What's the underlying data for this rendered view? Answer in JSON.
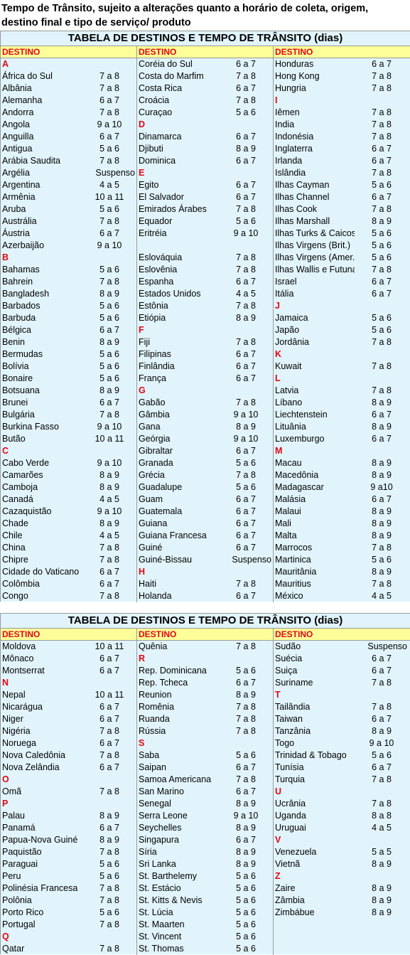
{
  "intro": "Tempo de Trânsito, sujeito a alterações quanto a horário de coleta, origem, destino final e tipo de serviço/ produto",
  "tables": [
    {
      "title": "TABELA DE DESTINOS E TEMPO DE TRÂNSITO (dias)",
      "headers": [
        "DESTINO",
        "DESTINO",
        "DESTINO"
      ],
      "columns": [
        [
          {
            "l": "A"
          },
          {
            "n": "África do Sul",
            "v": "7 a 8"
          },
          {
            "n": "Albânia",
            "v": "7 a 8"
          },
          {
            "n": "Alemanha",
            "v": "6 a 7"
          },
          {
            "n": "Andorra",
            "v": "7 a 8"
          },
          {
            "n": "Angola",
            "v": "9 a 10"
          },
          {
            "n": "Anguilla",
            "v": "6 a 7"
          },
          {
            "n": "Antigua",
            "v": "5 a 6"
          },
          {
            "n": "Arábia Saudita",
            "v": "7 a 8"
          },
          {
            "n": "Argélia",
            "v": "Suspenso"
          },
          {
            "n": "Argentina",
            "v": "4 a 5"
          },
          {
            "n": "Armênia",
            "v": "10 a 11"
          },
          {
            "n": "Aruba",
            "v": "5 a 6"
          },
          {
            "n": "Austrália",
            "v": "7 a 8"
          },
          {
            "n": "Áustria",
            "v": "6 a 7"
          },
          {
            "n": "Azerbaijão",
            "v": "9 a 10"
          },
          {
            "l": "B"
          },
          {
            "n": "Bahamas",
            "v": "5 a 6"
          },
          {
            "n": "Bahrein",
            "v": "7 a 8"
          },
          {
            "n": "Bangladesh",
            "v": "8 a 9"
          },
          {
            "n": "Barbados",
            "v": "5 a 6"
          },
          {
            "n": "Barbuda",
            "v": "5 a 6"
          },
          {
            "n": "Bélgica",
            "v": "6 a 7"
          },
          {
            "n": "Benin",
            "v": "8 a 9"
          },
          {
            "n": "Bermudas",
            "v": "5 a 6"
          },
          {
            "n": "Bolívia",
            "v": "5 a 6"
          },
          {
            "n": "Bonaire",
            "v": "5 a 6"
          },
          {
            "n": "Botsuana",
            "v": "8 a 9"
          },
          {
            "n": "Brunei",
            "v": "6 a 7"
          },
          {
            "n": "Bulgária",
            "v": "7 a 8"
          },
          {
            "n": "Burkina Fasso",
            "v": "9 a 10"
          },
          {
            "n": "Butão",
            "v": "10 a 11"
          },
          {
            "l": "C"
          },
          {
            "n": "Cabo Verde",
            "v": "9 a 10"
          },
          {
            "n": "Camarões",
            "v": "8 a 9"
          },
          {
            "n": "Camboja",
            "v": "8 a 9"
          },
          {
            "n": "Canadá",
            "v": "4 a 5"
          },
          {
            "n": "Cazaquistão",
            "v": "9 a 10"
          },
          {
            "n": "Chade",
            "v": "8 a 9"
          },
          {
            "n": "Chile",
            "v": "4 a 5"
          },
          {
            "n": "China",
            "v": "7 a 8"
          },
          {
            "n": "Chipre",
            "v": "7 a 8"
          },
          {
            "n": "Cidade do Vaticano",
            "v": "6 a 7"
          },
          {
            "n": "Colômbia",
            "v": "6 a 7"
          },
          {
            "n": "Congo",
            "v": "7 a 8"
          }
        ],
        [
          {
            "n": "Coréia do Sul",
            "v": "6 a 7"
          },
          {
            "n": "Costa do Marfim",
            "v": "7 a 8"
          },
          {
            "n": "Costa Rica",
            "v": "6 a 7"
          },
          {
            "n": "Croácia",
            "v": "7 a 8"
          },
          {
            "n": "Curaçao",
            "v": "5 a 6"
          },
          {
            "l": "D"
          },
          {
            "n": "Dinamarca",
            "v": "6 a 7"
          },
          {
            "n": "Djibuti",
            "v": "8 a 9"
          },
          {
            "n": "Dominica",
            "v": "6 a 7"
          },
          {
            "l": "E"
          },
          {
            "n": "Egito",
            "v": "6 a 7"
          },
          {
            "n": "El Salvador",
            "v": "6 a 7"
          },
          {
            "n": "Emirados Árabes",
            "v": "7 a 8"
          },
          {
            "n": "Equador",
            "v": "5 a 6"
          },
          {
            "n": "Eritréia",
            "v": "9 a 10"
          },
          {
            "n": "",
            "v": ""
          },
          {
            "n": "Eslováquia",
            "v": "7 a 8"
          },
          {
            "n": "Eslovênia",
            "v": "7 a 8"
          },
          {
            "n": "Espanha",
            "v": "6 a 7"
          },
          {
            "n": "Estados Unidos",
            "v": "4 a 5"
          },
          {
            "n": "Estônia",
            "v": "7 a 8"
          },
          {
            "n": "Etiópia",
            "v": "8 a 9"
          },
          {
            "l": "F"
          },
          {
            "n": "Fiji",
            "v": "7 a 8"
          },
          {
            "n": "Filipinas",
            "v": "6 a 7"
          },
          {
            "n": "Finlândia",
            "v": "6 a 7"
          },
          {
            "n": "França",
            "v": "6 a 7"
          },
          {
            "l": "G"
          },
          {
            "n": "Gabão",
            "v": "7 a 8"
          },
          {
            "n": "Gâmbia",
            "v": "9 a 10"
          },
          {
            "n": "Gana",
            "v": "8 a 9"
          },
          {
            "n": "Geórgia",
            "v": "9 a 10"
          },
          {
            "n": "Gibraltar",
            "v": "6 a 7"
          },
          {
            "n": "Granada",
            "v": "5 a 6"
          },
          {
            "n": "Grécia",
            "v": "7 a 8"
          },
          {
            "n": "Guadalupe",
            "v": "5 a 6"
          },
          {
            "n": "Guam",
            "v": "6 a 7"
          },
          {
            "n": "Guatemala",
            "v": "6 a 7"
          },
          {
            "n": "Guiana",
            "v": "6 a 7"
          },
          {
            "n": "Guiana Francesa",
            "v": "6 a 7"
          },
          {
            "n": "Guiné",
            "v": "6 a 7"
          },
          {
            "n": "Guiné-Bissau",
            "v": "Suspenso"
          },
          {
            "l": "H"
          },
          {
            "n": "Haiti",
            "v": "7 a 8"
          },
          {
            "n": "Holanda",
            "v": "6 a 7"
          }
        ],
        [
          {
            "n": "Honduras",
            "v": "6 a 7"
          },
          {
            "n": "Hong Kong",
            "v": "7 a 8"
          },
          {
            "n": "Hungria",
            "v": "7 a 8"
          },
          {
            "l": "I"
          },
          {
            "n": "Iêmen",
            "v": "7 a 8"
          },
          {
            "n": "India",
            "v": "7 a 8"
          },
          {
            "n": "Indonésia",
            "v": "7 a 8"
          },
          {
            "n": "Inglaterra",
            "v": "6 a 7"
          },
          {
            "n": "Irlanda",
            "v": "6 a 7"
          },
          {
            "n": "Islândia",
            "v": "7 a 8"
          },
          {
            "n": "Ilhas Cayman",
            "v": "5 a 6"
          },
          {
            "n": "Ilhas Channel",
            "v": "6 a 7"
          },
          {
            "n": "Ilhas Cook",
            "v": "7 a 8"
          },
          {
            "n": "Ilhas Marshall",
            "v": "8 a 9"
          },
          {
            "n": "Ilhas Turks & Caicos",
            "v": "5 a 6"
          },
          {
            "n": "Ilhas Virgens (Brit.)",
            "v": "5 a 6"
          },
          {
            "n": "Ilhas Virgens (Amer.)",
            "v": "5 a 6"
          },
          {
            "n": "Ilhas Wallis e Futuna",
            "v": "7 a 8"
          },
          {
            "n": "Israel",
            "v": "6 a 7"
          },
          {
            "n": "Itália",
            "v": "6 a 7"
          },
          {
            "l": "J"
          },
          {
            "n": "Jamaica",
            "v": "5 a 6"
          },
          {
            "n": "Japão",
            "v": "5 a 6"
          },
          {
            "n": "Jordânia",
            "v": "7 a 8"
          },
          {
            "l": "K"
          },
          {
            "n": "Kuwait",
            "v": "7 a 8"
          },
          {
            "l": "L"
          },
          {
            "n": "Latvia",
            "v": "7 a 8"
          },
          {
            "n": "Líbano",
            "v": "8 a 9"
          },
          {
            "n": "Liechtenstein",
            "v": "6 a 7"
          },
          {
            "n": "Lituânia",
            "v": "8 a 9"
          },
          {
            "n": "Luxemburgo",
            "v": "6 a 7"
          },
          {
            "l": "M"
          },
          {
            "n": "Macau",
            "v": "8 a 9"
          },
          {
            "n": "Macedônia",
            "v": "8 a 9"
          },
          {
            "n": "Madagascar",
            "v": "9 a10"
          },
          {
            "n": "Malásia",
            "v": "6 a 7"
          },
          {
            "n": "Malaui",
            "v": "8 a 9"
          },
          {
            "n": "Mali",
            "v": "8 a 9"
          },
          {
            "n": "Malta",
            "v": "8 a 9"
          },
          {
            "n": "Marrocos",
            "v": "7 a 8"
          },
          {
            "n": "Martinica",
            "v": "5 a 6"
          },
          {
            "n": "Mauritânia",
            "v": "8 a 9"
          },
          {
            "n": "Mauritius",
            "v": "7 a 8"
          },
          {
            "n": "México",
            "v": "4 a 5"
          }
        ]
      ]
    },
    {
      "title": "TABELA DE DESTINOS E TEMPO DE TRÂNSITO (dias)",
      "headers": [
        "DESTINO",
        "DESTINO",
        "DESTINO"
      ],
      "columns": [
        [
          {
            "n": "Moldova",
            "v": "10 a 11"
          },
          {
            "n": "Mônaco",
            "v": "6 a 7"
          },
          {
            "n": "Montserrat",
            "v": "6 a 7"
          },
          {
            "l": "N"
          },
          {
            "n": "Nepal",
            "v": "10 a 11"
          },
          {
            "n": "Nicarágua",
            "v": "6 a 7"
          },
          {
            "n": "Niger",
            "v": "6 a 7"
          },
          {
            "n": "Nigéria",
            "v": "7 a 8"
          },
          {
            "n": "Noruega",
            "v": "6 a 7"
          },
          {
            "n": "Nova Caledônia",
            "v": "7 a 8"
          },
          {
            "n": "Nova Zelândia",
            "v": "6 a 7"
          },
          {
            "l": "O"
          },
          {
            "n": "Omã",
            "v": "7 a 8"
          },
          {
            "l": "P"
          },
          {
            "n": "Palau",
            "v": "8 a 9"
          },
          {
            "n": "Panamá",
            "v": "6 a 7"
          },
          {
            "n": "Papua-Nova Guiné",
            "v": "8 a 9"
          },
          {
            "n": "Paquistão",
            "v": "7 a 8"
          },
          {
            "n": "Paraguai",
            "v": "5 a 6"
          },
          {
            "n": "Peru",
            "v": "5 a 6"
          },
          {
            "n": "Polinésia Francesa",
            "v": "7 a 8"
          },
          {
            "n": "Polônia",
            "v": "7 a 8"
          },
          {
            "n": "Porto Rico",
            "v": "5 a 6"
          },
          {
            "n": "Portugal",
            "v": "7 a 8"
          },
          {
            "l": "Q"
          },
          {
            "n": "Qatar",
            "v": "7 a 8"
          }
        ],
        [
          {
            "n": "Quênia",
            "v": "7 a 8"
          },
          {
            "l": "R"
          },
          {
            "n": "Rep. Dominicana",
            "v": "5 a 6"
          },
          {
            "n": "Rep. Tcheca",
            "v": "6 a 7"
          },
          {
            "n": "Reunion",
            "v": "8 a 9"
          },
          {
            "n": "Romênia",
            "v": "7 a 8"
          },
          {
            "n": "Ruanda",
            "v": "7 a 8"
          },
          {
            "n": "Rússia",
            "v": "7 a 8"
          },
          {
            "l": "S"
          },
          {
            "n": "Saba",
            "v": "5 a 6"
          },
          {
            "n": "Saipan",
            "v": "6 a 7"
          },
          {
            "n": "Samoa Americana",
            "v": "7 a 8"
          },
          {
            "n": "San Marino",
            "v": "6 a 7"
          },
          {
            "n": "Senegal",
            "v": "8 a 9"
          },
          {
            "n": "Serra Leone",
            "v": "9 a 10"
          },
          {
            "n": "Seychelles",
            "v": "8 a 9"
          },
          {
            "n": "Singapura",
            "v": "6 a 7"
          },
          {
            "n": "Síria",
            "v": "8 a 9"
          },
          {
            "n": "Sri Lanka",
            "v": "8 a 9"
          },
          {
            "n": "St. Barthelemy",
            "v": "5 a 6"
          },
          {
            "n": "St. Estácio",
            "v": "5 a 6"
          },
          {
            "n": "St. Kitts & Nevis",
            "v": "5 a 6"
          },
          {
            "n": "St. Lúcia",
            "v": "5 a 6"
          },
          {
            "n": "St. Maarten",
            "v": "5 a 6"
          },
          {
            "n": "St. Vincent",
            "v": "5 a 6"
          },
          {
            "n": "St. Thomas",
            "v": "5 a 6"
          }
        ],
        [
          {
            "n": "Sudão",
            "v": "Suspenso"
          },
          {
            "n": "Suécia",
            "v": "6 a 7"
          },
          {
            "n": "Suiça",
            "v": "6 a 7"
          },
          {
            "n": "Suriname",
            "v": "7 a 8"
          },
          {
            "l": "T"
          },
          {
            "n": "Tailândia",
            "v": "7 a 8"
          },
          {
            "n": "Taiwan",
            "v": "6 a 7"
          },
          {
            "n": "Tanzânia",
            "v": "8 a 9"
          },
          {
            "n": "Togo",
            "v": "9 a 10"
          },
          {
            "n": "Trinidad & Tobago",
            "v": "5 a 6"
          },
          {
            "n": "Tunísia",
            "v": "6 a 7"
          },
          {
            "n": "Turquia",
            "v": "7 a 8"
          },
          {
            "l": "U"
          },
          {
            "n": "Ucrânia",
            "v": "7 a 8"
          },
          {
            "n": "Uganda",
            "v": "8 a 8"
          },
          {
            "n": "Uruguai",
            "v": "4 a 5"
          },
          {
            "l": "V"
          },
          {
            "n": "Venezuela",
            "v": "5 a 5"
          },
          {
            "n": "Vietnã",
            "v": "8 a 9"
          },
          {
            "l": "Z"
          },
          {
            "n": "Zaire",
            "v": "8 a 9"
          },
          {
            "n": "Zâmbia",
            "v": "8 a 9"
          },
          {
            "n": "Zimbábue",
            "v": "8 a 9"
          }
        ]
      ]
    }
  ]
}
